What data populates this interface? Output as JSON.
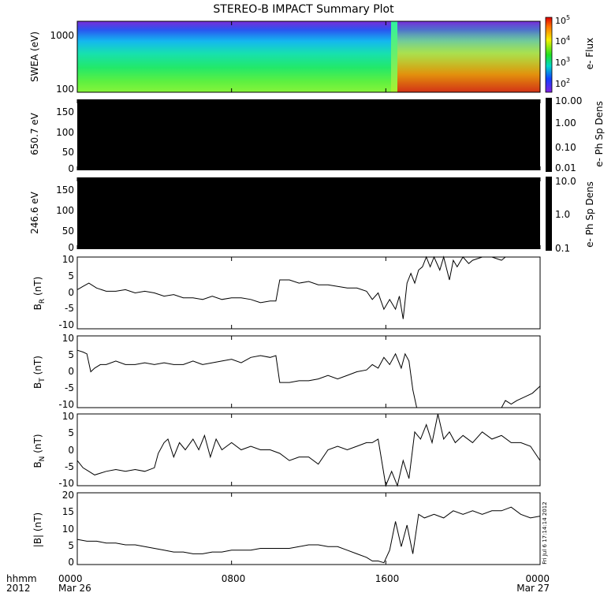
{
  "title": "STEREO-B IMPACT Summary Plot",
  "timestamp": "Fri Jul 6 17:14:14 2012",
  "x_axis": {
    "row_label": "hhmm",
    "year": "2012",
    "ticks": [
      {
        "time": "0000",
        "date": "Mar 26",
        "hour": 0
      },
      {
        "time": "0800",
        "date": "",
        "hour": 8
      },
      {
        "time": "1600",
        "date": "",
        "hour": 16
      },
      {
        "time": "0000",
        "date": "Mar 27",
        "hour": 24
      }
    ]
  },
  "panels": {
    "swea": {
      "ylabel": "SWEA (eV)",
      "yticks": [
        "1000",
        "100"
      ],
      "colorbar_label": "e- Flux",
      "colorbar_ticks": [
        {
          "base": "10",
          "exp": "5"
        },
        {
          "base": "10",
          "exp": "4"
        },
        {
          "base": "10",
          "exp": "3"
        },
        {
          "base": "10",
          "exp": "2"
        }
      ]
    },
    "ph650": {
      "ylabel": "650.7 eV",
      "yticks": [
        "150",
        "100",
        "50",
        "0"
      ],
      "colorbar_label": "e- Ph Sp Dens",
      "colorbar_ticks": [
        "10.00",
        "1.00",
        "0.10",
        "0.01"
      ]
    },
    "ph246": {
      "ylabel": "246.6 eV",
      "yticks": [
        "150",
        "100",
        "50",
        "0"
      ],
      "colorbar_label": "e- Ph Sp Dens",
      "colorbar_ticks": [
        "10.0",
        "1.0",
        "0.1"
      ]
    },
    "br": {
      "ylabel_main": "B",
      "ylabel_sub": "R",
      "ylabel_unit": " (nT)",
      "yticks": [
        "10",
        "5",
        "0",
        "-5",
        "-10"
      ]
    },
    "bt": {
      "ylabel_main": "B",
      "ylabel_sub": "T",
      "ylabel_unit": " (nT)",
      "yticks": [
        "10",
        "5",
        "0",
        "-5",
        "-10"
      ]
    },
    "bn": {
      "ylabel_main": "B",
      "ylabel_sub": "N",
      "ylabel_unit": " (nT)",
      "yticks": [
        "10",
        "5",
        "0",
        "-5",
        "-10"
      ]
    },
    "bmag": {
      "ylabel": "|B| (nT)",
      "yticks": [
        "20",
        "15",
        "10",
        "5",
        "0"
      ]
    }
  },
  "chart_data": {
    "type": "line",
    "title": "STEREO-B IMPACT Summary Plot",
    "x_unit": "hours since 2012 Mar 26 0000",
    "xlim": [
      0,
      24
    ],
    "series": [
      {
        "name": "B_R (nT)",
        "ylim": [
          -12,
          10
        ],
        "x": [
          0,
          0.3,
          0.6,
          1,
          1.5,
          2,
          2.5,
          3,
          3.5,
          4,
          4.5,
          5,
          5.5,
          6,
          6.5,
          7,
          7.5,
          8,
          8.5,
          9,
          9.5,
          10,
          10.3,
          10.5,
          11,
          11.5,
          12,
          12.5,
          13,
          13.5,
          14,
          14.5,
          15,
          15.3,
          15.6,
          15.9,
          16.2,
          16.5,
          16.7,
          16.9,
          17.1,
          17.3,
          17.5,
          17.7,
          17.9,
          18.1,
          18.3,
          18.5,
          18.8,
          19,
          19.3,
          19.5,
          19.7,
          20,
          20.3,
          20.5,
          21,
          21.5,
          22,
          22.2,
          22.5,
          23
        ],
        "y": [
          0,
          1,
          2,
          0.5,
          -0.5,
          -0.5,
          0,
          -1,
          -0.5,
          -1,
          -2,
          -1.5,
          -2.5,
          -2.5,
          -3,
          -2,
          -3,
          -2.5,
          -2.5,
          -3,
          -4,
          -3.5,
          -3.5,
          3,
          3,
          2,
          2.5,
          1.5,
          1.5,
          1,
          0.5,
          0.5,
          -0.5,
          -3,
          -1,
          -6,
          -3,
          -6,
          -2,
          -9,
          2,
          5,
          2,
          6,
          7,
          10,
          7,
          10,
          6,
          10,
          3,
          9,
          7,
          10,
          8,
          9,
          10,
          10,
          9,
          10,
          10,
          10
        ]
      },
      {
        "name": "B_T (nT)",
        "ylim": [
          -10,
          10
        ],
        "x": [
          0,
          0.3,
          0.5,
          0.7,
          0.9,
          1.2,
          1.5,
          2,
          2.5,
          3,
          3.5,
          4,
          4.5,
          5,
          5.5,
          6,
          6.5,
          7,
          7.5,
          8,
          8.5,
          9,
          9.5,
          10,
          10.3,
          10.5,
          11,
          11.5,
          12,
          12.5,
          13,
          13.5,
          14,
          14.5,
          15,
          15.3,
          15.6,
          15.9,
          16.2,
          16.5,
          16.8,
          17,
          17.2,
          17.4,
          17.6,
          18,
          19,
          20,
          21,
          22,
          22.2,
          22.5,
          22.8,
          23.2,
          23.6,
          24
        ],
        "y": [
          6,
          5.5,
          5,
          0,
          1,
          2,
          2,
          3,
          2,
          2,
          2.5,
          2,
          2.5,
          2,
          2,
          3,
          2,
          2.5,
          3,
          3.5,
          2.5,
          4,
          4.5,
          4,
          4.5,
          -3,
          -3,
          -2.5,
          -2.5,
          -2,
          -1,
          -2,
          -1,
          0,
          0.5,
          2,
          1,
          4,
          2,
          5,
          1,
          5,
          3,
          -5,
          -10,
          -10,
          -10,
          -10,
          -10,
          -10,
          -8,
          -9,
          -8,
          -7,
          -6,
          -4
        ]
      },
      {
        "name": "B_N (nT)",
        "ylim": [
          -10,
          10
        ],
        "x": [
          0,
          0.3,
          0.6,
          0.9,
          1.2,
          1.5,
          2,
          2.5,
          3,
          3.5,
          4,
          4.2,
          4.5,
          4.7,
          5,
          5.3,
          5.6,
          6,
          6.3,
          6.6,
          6.9,
          7.2,
          7.5,
          8,
          8.5,
          9,
          9.5,
          10,
          10.5,
          11,
          11.5,
          12,
          12.5,
          13,
          13.5,
          14,
          14.5,
          15,
          15.3,
          15.6,
          16,
          16.3,
          16.6,
          16.9,
          17.2,
          17.5,
          17.8,
          18.1,
          18.4,
          18.7,
          19,
          19.3,
          19.6,
          20,
          20.5,
          21,
          21.5,
          22,
          22.5,
          23,
          23.5,
          24
        ],
        "y": [
          -3,
          -5,
          -6,
          -7,
          -6.5,
          -6,
          -5.5,
          -6,
          -5.5,
          -6,
          -5,
          -1,
          2,
          3,
          -2,
          2,
          0,
          3,
          0,
          4,
          -2,
          3,
          0,
          2,
          0,
          1,
          0,
          0,
          -1,
          -3,
          -2,
          -2,
          -4,
          0,
          1,
          0,
          1,
          2,
          2,
          3,
          -10,
          -6,
          -10,
          -3,
          -8,
          5,
          3,
          7,
          2,
          10,
          3,
          5,
          2,
          4,
          2,
          5,
          3,
          4,
          2,
          2,
          1,
          -3
        ]
      },
      {
        "name": "|B| (nT)",
        "ylim": [
          0,
          20
        ],
        "x": [
          0,
          0.5,
          1,
          1.5,
          2,
          2.5,
          3,
          3.5,
          4,
          4.5,
          5,
          5.5,
          6,
          6.5,
          7,
          7.5,
          8,
          8.5,
          9,
          9.5,
          10,
          10.5,
          11,
          11.5,
          12,
          12.5,
          13,
          13.5,
          14,
          14.5,
          15,
          15.3,
          15.6,
          15.9,
          16.2,
          16.5,
          16.8,
          17.1,
          17.4,
          17.7,
          18,
          18.5,
          19,
          19.5,
          20,
          20.5,
          21,
          21.5,
          22,
          22.5,
          23,
          23.5,
          24
        ],
        "y": [
          7,
          6.5,
          6.5,
          6,
          6,
          5.5,
          5.5,
          5,
          4.5,
          4,
          3.5,
          3.5,
          3,
          3,
          3.5,
          3.5,
          4,
          4,
          4,
          4.5,
          4.5,
          4.5,
          4.5,
          5,
          5.5,
          5.5,
          5,
          5,
          4,
          3,
          2,
          1,
          1,
          0.5,
          4,
          12,
          5,
          11,
          3,
          14,
          13,
          14,
          13,
          15,
          14,
          15,
          14,
          15,
          15,
          16,
          14,
          13,
          13.5
        ]
      }
    ]
  }
}
